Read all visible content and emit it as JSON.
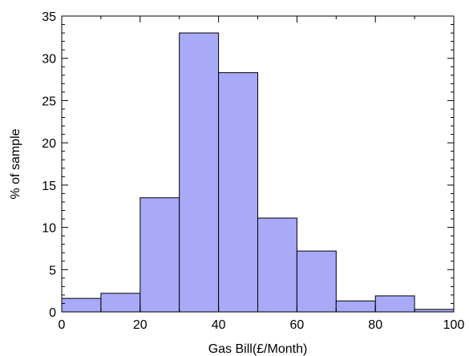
{
  "chart_data": {
    "type": "bar",
    "title": "",
    "xlabel": "Gas Bill(£/Month)",
    "ylabel": "% of sample",
    "xlim": [
      0,
      100
    ],
    "ylim": [
      0,
      35
    ],
    "bin_width": 10,
    "bins": [
      {
        "x0": 0,
        "x1": 10,
        "value": 1.6
      },
      {
        "x0": 10,
        "x1": 20,
        "value": 2.2
      },
      {
        "x0": 20,
        "x1": 30,
        "value": 13.5
      },
      {
        "x0": 30,
        "x1": 40,
        "value": 33.0
      },
      {
        "x0": 40,
        "x1": 50,
        "value": 28.3
      },
      {
        "x0": 50,
        "x1": 60,
        "value": 11.1
      },
      {
        "x0": 60,
        "x1": 70,
        "value": 7.2
      },
      {
        "x0": 70,
        "x1": 80,
        "value": 1.3
      },
      {
        "x0": 80,
        "x1": 90,
        "value": 1.9
      },
      {
        "x0": 90,
        "x1": 100,
        "value": 0.3
      }
    ],
    "x_ticks": [
      0,
      20,
      40,
      60,
      80,
      100
    ],
    "x_tick_labels": [
      "0",
      "20",
      "40",
      "60",
      "80",
      "100"
    ],
    "y_ticks": [
      0,
      5,
      10,
      15,
      20,
      25,
      30,
      35
    ],
    "y_tick_labels": [
      "0",
      "5",
      "10",
      "15",
      "20",
      "25",
      "30",
      "35"
    ],
    "bar_color": "#a8aaf8",
    "bar_edge_color": "#000000",
    "grid": false,
    "legend": "none"
  }
}
